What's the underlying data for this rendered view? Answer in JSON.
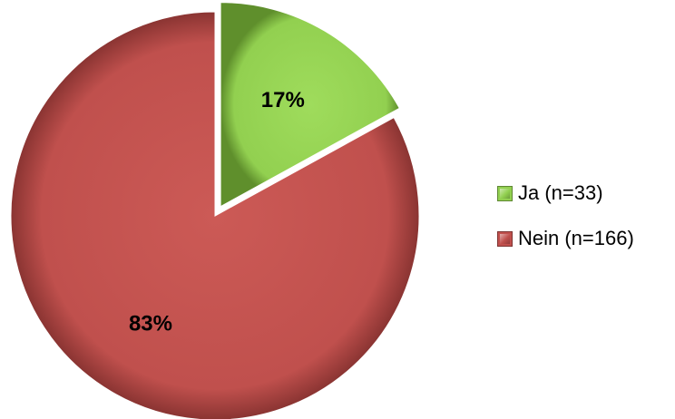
{
  "chart_data": {
    "type": "pie",
    "start_angle_deg": 0,
    "direction": "clockwise",
    "slices": [
      {
        "label": "Ja (n=33)",
        "percent": 17,
        "percent_label": "17%",
        "value": 33,
        "color": "#92d050"
      },
      {
        "label": "Nein (n=166)",
        "percent": 83,
        "percent_label": "83%",
        "value": 166,
        "color": "#c0504d"
      }
    ],
    "legend": {
      "position": "right"
    }
  }
}
